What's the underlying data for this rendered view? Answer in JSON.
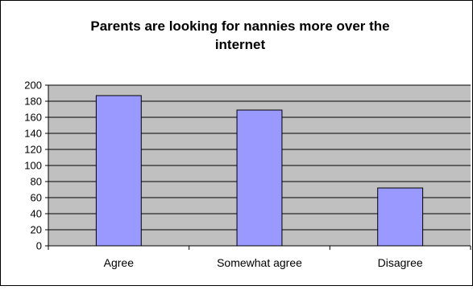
{
  "colors": {
    "bar_fill": "#9999ff",
    "bar_stroke": "#000000",
    "plot_background": "#c0c0c0",
    "gridline": "#000000"
  },
  "chart_data": {
    "type": "bar",
    "title_lines": [
      "Parents are looking for nannies more over the",
      "internet"
    ],
    "categories": [
      "Agree",
      "Somewhat agree",
      "Disagree"
    ],
    "values": [
      187,
      169,
      72
    ],
    "ylim": [
      0,
      200
    ],
    "yticks": [
      0,
      20,
      40,
      60,
      80,
      100,
      120,
      140,
      160,
      180,
      200
    ],
    "xlabel": "",
    "ylabel": "",
    "grid": true,
    "legend": "none"
  }
}
